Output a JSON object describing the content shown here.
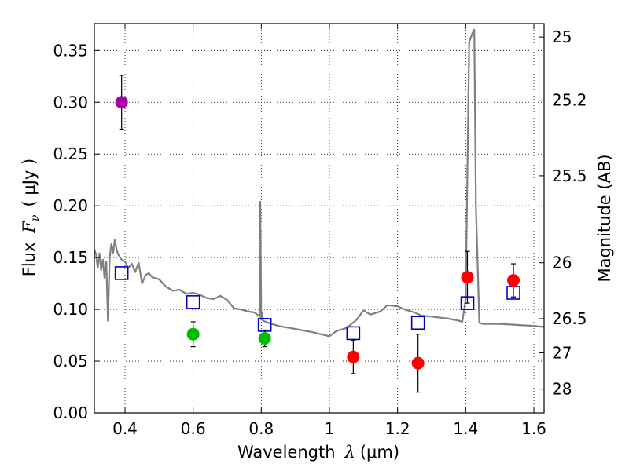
{
  "chart_data": {
    "type": "scatter",
    "xlabel": {
      "prefix": "Wavelength",
      "symbol": "λ",
      "unit": "(μm)"
    },
    "ylabel": {
      "prefix": "Flux",
      "symbol": "F",
      "sub": "ν",
      "unit": "( μJy )"
    },
    "y2label": "Magnitude (AB)",
    "xlim": [
      0.31,
      1.63
    ],
    "ylim": [
      0.0,
      0.376
    ],
    "x_ticks": [
      0.4,
      0.6,
      0.8,
      1.0,
      1.2,
      1.4,
      1.6
    ],
    "x_tick_labels": [
      "0.4",
      "0.6",
      "0.8",
      "1",
      "1.2",
      "1.4",
      "1.6"
    ],
    "y_ticks": [
      0.0,
      0.05,
      0.1,
      0.15,
      0.2,
      0.25,
      0.3,
      0.35
    ],
    "y_tick_labels": [
      "0.00",
      "0.05",
      "0.10",
      "0.15",
      "0.20",
      "0.25",
      "0.30",
      "0.35"
    ],
    "y2_ticks": [
      {
        "label": "25",
        "flux": 0.363
      },
      {
        "label": "25.2",
        "flux": 0.302
      },
      {
        "label": "25.5",
        "flux": 0.229
      },
      {
        "label": "26",
        "flux": 0.145
      },
      {
        "label": "26.5",
        "flux": 0.091
      },
      {
        "label": "27",
        "flux": 0.058
      },
      {
        "label": "28",
        "flux": 0.023
      }
    ],
    "grid": true,
    "series": [
      {
        "name": "model SED",
        "kind": "line",
        "color": "#808080",
        "x": [
          0.31,
          0.315,
          0.32,
          0.325,
          0.33,
          0.335,
          0.34,
          0.345,
          0.35,
          0.355,
          0.36,
          0.365,
          0.37,
          0.375,
          0.38,
          0.39,
          0.4,
          0.41,
          0.42,
          0.43,
          0.44,
          0.45,
          0.46,
          0.47,
          0.48,
          0.5,
          0.52,
          0.54,
          0.56,
          0.58,
          0.6,
          0.62,
          0.64,
          0.66,
          0.68,
          0.7,
          0.72,
          0.74,
          0.76,
          0.78,
          0.795,
          0.797,
          0.8,
          0.803,
          0.805,
          0.82,
          0.85,
          0.9,
          0.95,
          1.0,
          1.02,
          1.05,
          1.08,
          1.1,
          1.12,
          1.15,
          1.17,
          1.2,
          1.22,
          1.25,
          1.27,
          1.3,
          1.35,
          1.38,
          1.39,
          1.4,
          1.41,
          1.42,
          1.425,
          1.43,
          1.44,
          1.45,
          1.5,
          1.55,
          1.6,
          1.63
        ],
        "y": [
          0.158,
          0.153,
          0.14,
          0.154,
          0.138,
          0.148,
          0.13,
          0.146,
          0.089,
          0.15,
          0.163,
          0.154,
          0.167,
          0.158,
          0.153,
          0.148,
          0.146,
          0.14,
          0.144,
          0.136,
          0.145,
          0.125,
          0.133,
          0.135,
          0.131,
          0.129,
          0.122,
          0.118,
          0.119,
          0.115,
          0.116,
          0.114,
          0.111,
          0.11,
          0.113,
          0.109,
          0.101,
          0.1,
          0.098,
          0.097,
          0.093,
          0.204,
          0.09,
          0.097,
          0.089,
          0.087,
          0.084,
          0.081,
          0.078,
          0.074,
          0.079,
          0.082,
          0.09,
          0.099,
          0.095,
          0.098,
          0.104,
          0.103,
          0.1,
          0.097,
          0.094,
          0.093,
          0.091,
          0.089,
          0.088,
          0.11,
          0.358,
          0.367,
          0.37,
          0.2,
          0.087,
          0.086,
          0.086,
          0.085,
          0.084,
          0.083
        ]
      },
      {
        "name": "model photometry",
        "kind": "open-square",
        "color": "#0000cc",
        "x": [
          0.39,
          0.6,
          0.81,
          1.07,
          1.26,
          1.405,
          1.54
        ],
        "y": [
          0.135,
          0.107,
          0.085,
          0.077,
          0.087,
          0.106,
          0.116
        ]
      },
      {
        "name": "magenta point",
        "kind": "filled-circle",
        "color": "#aa00aa",
        "x": [
          0.39
        ],
        "y": [
          0.3
        ],
        "err": [
          0.026
        ]
      },
      {
        "name": "green points",
        "kind": "filled-circle",
        "color": "#00bb00",
        "x": [
          0.6,
          0.81
        ],
        "y": [
          0.076,
          0.072
        ],
        "err": [
          0.012,
          0.008
        ]
      },
      {
        "name": "red points",
        "kind": "filled-circle",
        "color": "#ff0000",
        "x": [
          1.07,
          1.26,
          1.405,
          1.54
        ],
        "y": [
          0.054,
          0.048,
          0.131,
          0.128
        ],
        "err": [
          0.016,
          0.028,
          0.025,
          0.016
        ]
      }
    ]
  }
}
